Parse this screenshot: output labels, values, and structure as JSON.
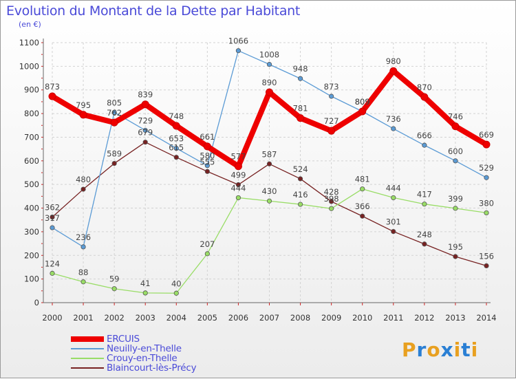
{
  "title": "Evolution du Montant de la Dette par Habitant",
  "subtitle": "(en €)",
  "logo": {
    "letters": [
      "P",
      "r",
      "o",
      "x",
      "i",
      "t",
      "i"
    ],
    "colors": [
      "#e8a020",
      "#2a7fd4",
      "#e8a020",
      "#2a7fd4",
      "#e8a020",
      "#2a7fd4",
      "#e8a020"
    ]
  },
  "chart_data": {
    "type": "line",
    "x": [
      "2000",
      "2001",
      "2002",
      "2003",
      "2004",
      "2005",
      "2006",
      "2007",
      "2008",
      "2009",
      "2010",
      "2011",
      "2012",
      "2013",
      "2014"
    ],
    "y_ticks": [
      "0",
      "100",
      "200",
      "300",
      "400",
      "500",
      "600",
      "700",
      "800",
      "900",
      "1000",
      "1100"
    ],
    "ylim": [
      0,
      1100
    ],
    "grid": true,
    "legend_position": "bottom-left",
    "series": [
      {
        "name": "ERCUIS",
        "color": "#ee0000",
        "values": [
          873,
          795,
          762,
          839,
          748,
          661,
          577,
          890,
          781,
          727,
          809,
          980,
          870,
          746,
          669
        ]
      },
      {
        "name": "Neuilly-en-Thelle",
        "color": "#5b9bd5",
        "values": [
          317,
          236,
          805,
          729,
          653,
          580,
          1066,
          1008,
          948,
          873,
          809,
          736,
          666,
          600,
          529
        ]
      },
      {
        "name": "Crouy-en-Thelle",
        "color": "#99dd66",
        "values": [
          124,
          88,
          59,
          41,
          40,
          207,
          444,
          430,
          416,
          398,
          481,
          444,
          417,
          399,
          380
        ]
      },
      {
        "name": "Blaincourt-lès-Précy",
        "color": "#772222",
        "values": [
          362,
          480,
          589,
          679,
          615,
          555,
          499,
          587,
          524,
          428,
          366,
          301,
          248,
          195,
          156
        ]
      }
    ]
  }
}
